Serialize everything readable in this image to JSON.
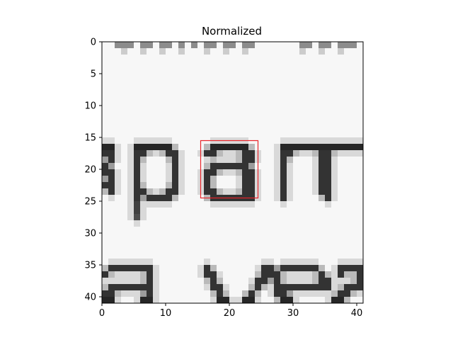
{
  "chart_data": {
    "type": "heatmap",
    "title": "Normalized",
    "xlabel": "",
    "ylabel": "",
    "colormap": "gray",
    "x_range": [
      0,
      40
    ],
    "y_range": [
      0,
      40
    ],
    "origin": "upper",
    "x_ticks": [
      0,
      10,
      20,
      30,
      40
    ],
    "x_tick_labels": [
      "0",
      "10",
      "20",
      "30",
      "40"
    ],
    "y_ticks": [
      0,
      5,
      10,
      15,
      20,
      25,
      30,
      35,
      40
    ],
    "y_tick_labels": [
      "0",
      "5",
      "10",
      "15",
      "20",
      "25",
      "30",
      "35",
      "40"
    ],
    "grid": false,
    "highlight_box": {
      "x0": 15,
      "y0": 15,
      "x1": 24,
      "y1": 24,
      "color": "#e8252a"
    },
    "image_size": [
      41,
      41
    ],
    "background_value": 0.97,
    "dark_strokes": [
      {
        "row": 0,
        "cols": [
          2,
          3,
          4,
          6,
          7,
          9,
          10,
          12,
          14,
          16,
          17,
          19,
          20,
          22,
          23,
          31,
          32,
          34,
          35,
          37,
          38,
          39
        ],
        "value": 0.55
      },
      {
        "row": 1,
        "cols": [
          3,
          6,
          9,
          12,
          16,
          19,
          22,
          31,
          34,
          37
        ],
        "value": 0.8
      },
      {
        "row": 16,
        "cols": [
          0,
          1,
          5,
          6,
          7,
          8,
          9,
          10,
          17,
          18,
          19,
          20,
          21,
          22,
          28,
          29,
          30,
          31,
          32,
          33,
          34,
          35,
          36,
          37,
          38,
          39,
          40
        ],
        "value": 0.15
      },
      {
        "row": 17,
        "cols": [
          0,
          1,
          5,
          6,
          10,
          11,
          16,
          17,
          22,
          23,
          28,
          29,
          34,
          35
        ],
        "value": 0.2
      },
      {
        "row": 18,
        "cols": [
          1,
          5,
          11,
          22,
          23,
          28,
          34,
          35
        ],
        "value": 0.2
      },
      {
        "row": 19,
        "cols": [
          0,
          5,
          11,
          17,
          18,
          19,
          20,
          21,
          22,
          28,
          34,
          35
        ],
        "value": 0.2
      },
      {
        "row": 20,
        "cols": [
          0,
          1,
          5,
          11,
          16,
          17,
          22,
          23,
          28,
          34,
          35
        ],
        "value": 0.2
      },
      {
        "row": 21,
        "cols": [
          1,
          5,
          11,
          16,
          22,
          23,
          28,
          34,
          35
        ],
        "value": 0.2
      },
      {
        "row": 22,
        "cols": [
          0,
          1,
          5,
          11,
          16,
          22,
          23,
          28,
          34,
          35
        ],
        "value": 0.2
      },
      {
        "row": 23,
        "cols": [
          1,
          5,
          6,
          10,
          11,
          16,
          17,
          22,
          23,
          28,
          34,
          35
        ],
        "value": 0.2
      },
      {
        "row": 24,
        "cols": [
          5,
          7,
          8,
          9,
          10,
          17,
          18,
          19,
          20,
          21,
          22,
          23,
          28,
          35
        ],
        "value": 0.2
      },
      {
        "row": 25,
        "cols": [
          5
        ],
        "value": 0.25
      },
      {
        "row": 26,
        "cols": [
          5
        ],
        "value": 0.25
      },
      {
        "row": 27,
        "cols": [
          5
        ],
        "value": 0.3
      },
      {
        "row": 35,
        "cols": [
          1,
          2,
          3,
          4,
          5,
          6,
          7,
          16,
          25,
          26,
          28,
          29,
          30,
          31,
          32,
          33,
          37,
          38,
          39,
          40
        ],
        "value": 0.2
      },
      {
        "row": 36,
        "cols": [
          0,
          7,
          16,
          17,
          25,
          26,
          27,
          34,
          37,
          40
        ],
        "value": 0.2
      },
      {
        "row": 37,
        "cols": [
          7,
          17,
          24,
          25,
          27,
          34,
          35,
          40
        ],
        "value": 0.2
      },
      {
        "row": 38,
        "cols": [
          1,
          2,
          3,
          4,
          5,
          6,
          7,
          17,
          18,
          24,
          27,
          28,
          29,
          30,
          31,
          32,
          33,
          34,
          35,
          38,
          39,
          40
        ],
        "value": 0.2
      },
      {
        "row": 39,
        "cols": [
          0,
          1,
          7,
          18,
          23,
          27,
          28,
          37,
          38
        ],
        "value": 0.2
      },
      {
        "row": 40,
        "cols": [
          0,
          1,
          6,
          7,
          18,
          19,
          22,
          23,
          28,
          29,
          36,
          37
        ],
        "value": 0.15
      }
    ]
  }
}
